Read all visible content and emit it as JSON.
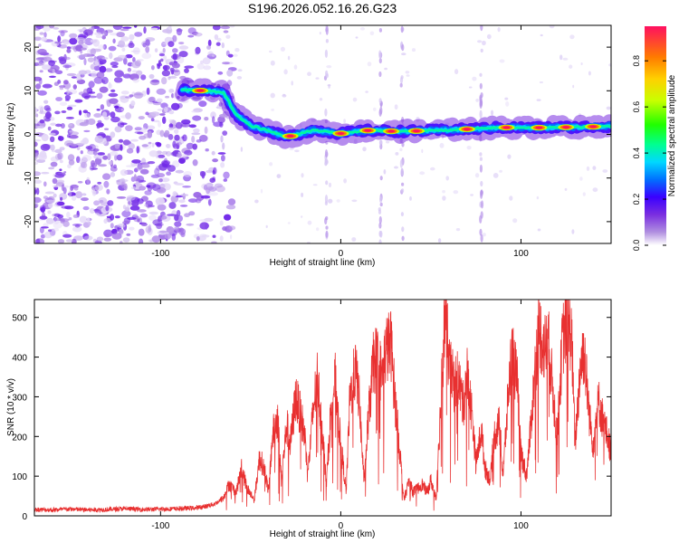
{
  "title": "S196.2026.052.16.26.G23",
  "chart_data": [
    {
      "type": "heatmap",
      "title": "S196.2026.052.16.26.G23",
      "xlabel": "Height of straight line (km)",
      "ylabel": "Frequency (Hz)",
      "xlim": [
        -170,
        150
      ],
      "ylim": [
        -25,
        25
      ],
      "xticks": [
        -100,
        0,
        100
      ],
      "yticks": [
        -20,
        -10,
        0,
        10,
        20
      ],
      "colorbar": {
        "label": "Normalized spectral amplitude",
        "range": [
          0,
          0.95
        ],
        "ticks": [
          0.0,
          0.2,
          0.4,
          0.6,
          0.8
        ],
        "colors": [
          "#ffffff",
          "#b08fe0",
          "#7a2ee0",
          "#3a00ff",
          "#0070ff",
          "#00d8ff",
          "#00ff90",
          "#20ff00",
          "#c8ff00",
          "#ffd000",
          "#ff7a00",
          "#ff1060"
        ]
      },
      "noise_region": {
        "x_range": [
          -170,
          -72
        ],
        "y_range": [
          -25,
          25
        ]
      },
      "ridge": [
        {
          "x": -88,
          "f": 10.2
        },
        {
          "x": -75,
          "f": 10.0
        },
        {
          "x": -65,
          "f": 9.6
        },
        {
          "x": -58,
          "f": 4.5
        },
        {
          "x": -50,
          "f": 2.0
        },
        {
          "x": -40,
          "f": 0.8
        },
        {
          "x": -30,
          "f": -0.6
        },
        {
          "x": -15,
          "f": 1.0
        },
        {
          "x": 0,
          "f": 0.2
        },
        {
          "x": 15,
          "f": 0.9
        },
        {
          "x": 30,
          "f": 0.7
        },
        {
          "x": 45,
          "f": 0.8
        },
        {
          "x": 60,
          "f": 1.0
        },
        {
          "x": 75,
          "f": 1.3
        },
        {
          "x": 90,
          "f": 1.6
        },
        {
          "x": 105,
          "f": 1.5
        },
        {
          "x": 120,
          "f": 1.6
        },
        {
          "x": 135,
          "f": 1.7
        },
        {
          "x": 150,
          "f": 1.9
        }
      ],
      "vertical_streaks_x": [
        -8,
        22,
        34,
        78
      ]
    },
    {
      "type": "line",
      "title": "",
      "xlabel": "Height of straight line (km)",
      "ylabel": "SNR (10 * v/v)",
      "xlim": [
        -170,
        150
      ],
      "ylim": [
        0,
        545
      ],
      "xticks": [
        -100,
        0,
        100
      ],
      "yticks": [
        0,
        100,
        200,
        300,
        400,
        500
      ],
      "color": "#e83030",
      "series": [
        {
          "name": "SNR",
          "x": [
            -170,
            -160,
            -150,
            -140,
            -130,
            -120,
            -110,
            -100,
            -90,
            -80,
            -75,
            -70,
            -65,
            -62,
            -58,
            -55,
            -52,
            -48,
            -45,
            -42,
            -40,
            -38,
            -35,
            -33,
            -30,
            -28,
            -25,
            -22,
            -20,
            -18,
            -15,
            -13,
            -10,
            -8,
            -5,
            -3,
            0,
            3,
            5,
            8,
            10,
            13,
            15,
            18,
            20,
            23,
            25,
            28,
            30,
            33,
            35,
            38,
            40,
            43,
            45,
            48,
            50,
            53,
            55,
            58,
            60,
            63,
            65,
            68,
            70,
            73,
            75,
            78,
            80,
            83,
            85,
            88,
            90,
            93,
            95,
            98,
            100,
            103,
            105,
            108,
            110,
            113,
            115,
            118,
            120,
            123,
            125,
            128,
            130,
            133,
            135,
            138,
            140,
            143,
            145,
            148,
            150
          ],
          "y": [
            16,
            15,
            17,
            15,
            16,
            18,
            16,
            17,
            18,
            20,
            24,
            30,
            45,
            80,
            60,
            120,
            70,
            40,
            150,
            110,
            60,
            200,
            250,
            90,
            230,
            180,
            300,
            250,
            200,
            120,
            280,
            350,
            200,
            80,
            300,
            340,
            180,
            60,
            290,
            370,
            310,
            80,
            230,
            380,
            400,
            350,
            420,
            430,
            300,
            150,
            40,
            90,
            60,
            70,
            80,
            60,
            90,
            40,
            240,
            530,
            380,
            330,
            350,
            280,
            360,
            250,
            130,
            220,
            120,
            90,
            200,
            230,
            100,
            310,
            420,
            330,
            160,
            100,
            200,
            380,
            470,
            420,
            450,
            300,
            200,
            440,
            480,
            460,
            180,
            380,
            420,
            250,
            180,
            290,
            250,
            200,
            160
          ]
        }
      ]
    }
  ]
}
